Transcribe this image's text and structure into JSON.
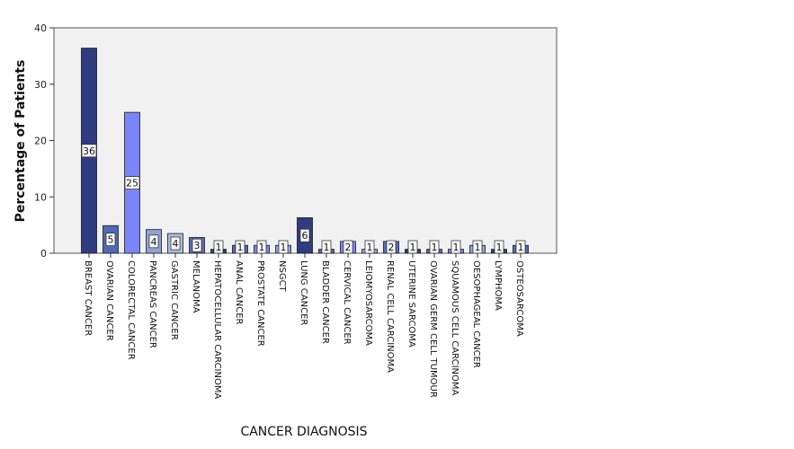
{
  "chart_data": {
    "type": "bar",
    "title": "",
    "xlabel": "CANCER DIAGNOSIS",
    "ylabel": "Percentage of Patients",
    "ylim": [
      0,
      40
    ],
    "yticks": [
      0,
      10,
      20,
      30,
      40
    ],
    "grid": false,
    "legend": "none",
    "categories": [
      "BREAST CANCER",
      "OVARIAN CANCER",
      "COLORECTAL CANCER",
      "PANCREAS CANCER",
      "GASTRIC CANCER",
      "MELANOMA",
      "HEPATOCELLULAR CARCINOMA",
      "ANAL CANCER",
      "PROSTATE CANCER",
      "NSGCT",
      "LUNG CANCER",
      "BLADDER CANCER",
      "CERVICAL CANCER",
      "LEIOMYOSARCOMA",
      "RENAL CELL CARCINOMA",
      "UTERINE SARCOMA",
      "OVARIAN GERM CELL TUMOUR",
      "SQUAMOUS CELL CARCINOMA",
      "OESOPHAGEAL CANCER",
      "LYMPHOMA",
      "OSTEOSARCOMA"
    ],
    "values": [
      36.4,
      4.9,
      25.0,
      4.2,
      3.5,
      2.8,
      0.7,
      1.4,
      1.4,
      1.4,
      6.3,
      0.7,
      2.1,
      0.7,
      2.1,
      0.7,
      0.7,
      0.7,
      1.4,
      0.7,
      1.4
    ],
    "data_labels": [
      "36",
      "5",
      "25",
      "4",
      "4",
      "3",
      "1",
      "1",
      "1",
      "1",
      "6",
      "1",
      "2",
      "1",
      "2",
      "1",
      "1",
      "1",
      "1",
      "1",
      "1"
    ],
    "bar_colors": [
      "#2f3c82",
      "#5068b8",
      "#7a86f8",
      "#8fa2d8",
      "#a8bde0",
      "#5a6cc0",
      "#2f3c82",
      "#5068b8",
      "#7a86f8",
      "#8fa2d8",
      "#2f3c82",
      "#5068b8",
      "#7a86f8",
      "#8fa2d8",
      "#5a6cc0",
      "#2f3c82",
      "#5068b8",
      "#7a86f8",
      "#8fa2d8",
      "#2f3c82",
      "#5068b8"
    ],
    "plot_background": "#f1f1f1"
  }
}
